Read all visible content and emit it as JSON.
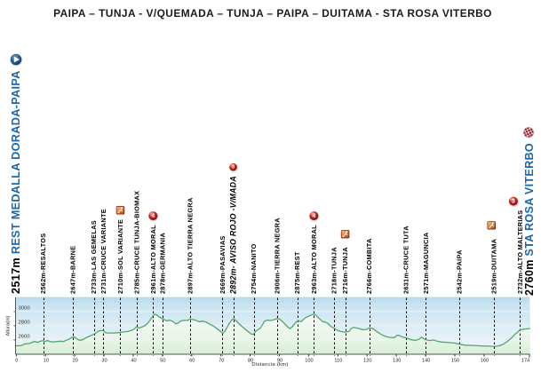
{
  "title": "PAIPA – TUNJA - V/QUEMADA – TUNJA – PAIPA – DUITAMA - STA ROSA VITERBO",
  "colors": {
    "title": "#1a1a24",
    "route_blue": "#1768af",
    "label_black": "#000000",
    "line_green": "#4fa76b",
    "axis_gray": "#555555"
  },
  "start_point": {
    "altitude": "2517m",
    "name": "REST MEDALLA DORADA-PAIPA",
    "icon": "start"
  },
  "finish_point": {
    "altitude": "2760m",
    "name": "STA ROSA VITERBO",
    "icon": "finish"
  },
  "axes": {
    "x_label": "Distancia  (km)",
    "y_label": "Altura(m)",
    "x_ticks": [
      0,
      10,
      20,
      30,
      40,
      50,
      60,
      70,
      80,
      90,
      100,
      110,
      120,
      130,
      140,
      150,
      160,
      174
    ],
    "y_ticks": [
      2600,
      2800,
      3000
    ],
    "x_range": [
      0,
      175.6
    ],
    "y_range": [
      2400,
      3200
    ]
  },
  "chart_data": {
    "type": "area",
    "title": "PAIPA – TUNJA - V/QUEMADA – TUNJA – PAIPA – DUITAMA - STA ROSA VITERBO",
    "xlabel": "Distancia  (km)",
    "ylabel": "Altura(m)",
    "xlim": [
      0,
      175.6
    ],
    "ylim": [
      2400,
      3200
    ],
    "grid": "horizontal",
    "series_name": "elevation profile",
    "points": [
      [
        0,
        2517
      ],
      [
        1.5,
        2520
      ],
      [
        3,
        2544
      ],
      [
        4.5,
        2550
      ],
      [
        6.3,
        2580
      ],
      [
        7.3,
        2566
      ],
      [
        8.5,
        2586
      ],
      [
        9.2,
        2590
      ],
      [
        9.8,
        2578
      ],
      [
        10.7,
        2592
      ],
      [
        11.5,
        2578
      ],
      [
        12.5,
        2572
      ],
      [
        13.8,
        2576
      ],
      [
        15,
        2583
      ],
      [
        16.2,
        2578
      ],
      [
        17,
        2596
      ],
      [
        17.8,
        2605
      ],
      [
        18.9,
        2633
      ],
      [
        19.6,
        2649
      ],
      [
        20.4,
        2628
      ],
      [
        21.2,
        2601
      ],
      [
        21.9,
        2596
      ],
      [
        22.7,
        2602
      ],
      [
        24.1,
        2636
      ],
      [
        25.6,
        2663
      ],
      [
        27.1,
        2694
      ],
      [
        27.9,
        2719
      ],
      [
        28.7,
        2731
      ],
      [
        29.8,
        2731
      ],
      [
        30.6,
        2700
      ],
      [
        32,
        2698
      ],
      [
        33.5,
        2697
      ],
      [
        35,
        2703
      ],
      [
        35.6,
        2706
      ],
      [
        37,
        2712
      ],
      [
        38.5,
        2722
      ],
      [
        40,
        2744
      ],
      [
        41.2,
        2785
      ],
      [
        42,
        2768
      ],
      [
        42.8,
        2780
      ],
      [
        44,
        2800
      ],
      [
        45,
        2838
      ],
      [
        46,
        2890
      ],
      [
        46.8,
        2940
      ],
      [
        47.3,
        2962
      ],
      [
        47.9,
        2955
      ],
      [
        48.6,
        2930
      ],
      [
        50,
        2899
      ],
      [
        50.7,
        2884
      ],
      [
        51.5,
        2868
      ],
      [
        52.3,
        2879
      ],
      [
        53.2,
        2867
      ],
      [
        54,
        2848
      ],
      [
        54.6,
        2828
      ],
      [
        55.4,
        2838
      ],
      [
        56.2,
        2866
      ],
      [
        57.6,
        2879
      ],
      [
        58.8,
        2876
      ],
      [
        59.4,
        2897
      ],
      [
        60.5,
        2886
      ],
      [
        61.3,
        2879
      ],
      [
        62.5,
        2858
      ],
      [
        63.9,
        2864
      ],
      [
        64.8,
        2854
      ],
      [
        65.6,
        2834
      ],
      [
        67,
        2806
      ],
      [
        68.5,
        2765
      ],
      [
        70,
        2714
      ],
      [
        70.6,
        2690
      ],
      [
        71.4,
        2725
      ],
      [
        72.8,
        2828
      ],
      [
        73.7,
        2880
      ],
      [
        74.3,
        2900
      ],
      [
        75.2,
        2868
      ],
      [
        76.7,
        2806
      ],
      [
        78.2,
        2755
      ],
      [
        79.7,
        2704
      ],
      [
        80.4,
        2684
      ],
      [
        81.1,
        2676
      ],
      [
        81.9,
        2722
      ],
      [
        82.7,
        2744
      ],
      [
        83.4,
        2764
      ],
      [
        84.3,
        2820
      ],
      [
        84.9,
        2862
      ],
      [
        85.9,
        2880
      ],
      [
        86.9,
        2872
      ],
      [
        88,
        2884
      ],
      [
        89.3,
        2902
      ],
      [
        90.1,
        2893
      ],
      [
        91.3,
        2848
      ],
      [
        92.8,
        2786
      ],
      [
        93.6,
        2759
      ],
      [
        94.4,
        2786
      ],
      [
        95.8,
        2858
      ],
      [
        96.5,
        2870
      ],
      [
        97.4,
        2858
      ],
      [
        98.8,
        2909
      ],
      [
        100.3,
        2940
      ],
      [
        101.4,
        2958
      ],
      [
        101.9,
        2964
      ],
      [
        102.6,
        2944
      ],
      [
        103.4,
        2909
      ],
      [
        104.8,
        2858
      ],
      [
        105.6,
        2851
      ],
      [
        106.4,
        2838
      ],
      [
        107.8,
        2786
      ],
      [
        108.8,
        2764
      ],
      [
        109.4,
        2744
      ],
      [
        110.9,
        2719
      ],
      [
        112.4,
        2710
      ],
      [
        113.8,
        2719
      ],
      [
        114.6,
        2764
      ],
      [
        115.4,
        2776
      ],
      [
        116.9,
        2764
      ],
      [
        118.3,
        2745
      ],
      [
        119.8,
        2748
      ],
      [
        120.7,
        2769
      ],
      [
        121.8,
        2764
      ],
      [
        122.5,
        2745
      ],
      [
        123.3,
        2719
      ],
      [
        124.8,
        2678
      ],
      [
        126.3,
        2649
      ],
      [
        127.8,
        2636
      ],
      [
        129.3,
        2633
      ],
      [
        130.1,
        2662
      ],
      [
        130.8,
        2668
      ],
      [
        131.6,
        2649
      ],
      [
        133.3,
        2629
      ],
      [
        135.2,
        2601
      ],
      [
        136.7,
        2595
      ],
      [
        137.8,
        2612
      ],
      [
        138.6,
        2640
      ],
      [
        139.5,
        2611
      ],
      [
        140.2,
        2601
      ],
      [
        141.2,
        2591
      ],
      [
        142.6,
        2600
      ],
      [
        144.1,
        2581
      ],
      [
        145.6,
        2570
      ],
      [
        147.1,
        2566
      ],
      [
        148.6,
        2561
      ],
      [
        150.1,
        2555
      ],
      [
        151.5,
        2541
      ],
      [
        153.5,
        2526
      ],
      [
        156.4,
        2522
      ],
      [
        159.2,
        2516
      ],
      [
        162,
        2512
      ],
      [
        163.3,
        2506
      ],
      [
        165,
        2516
      ],
      [
        166.4,
        2536
      ],
      [
        167.9,
        2576
      ],
      [
        169.3,
        2625
      ],
      [
        170.7,
        2684
      ],
      [
        171.8,
        2724
      ],
      [
        172.4,
        2744
      ],
      [
        173.2,
        2749
      ],
      [
        174,
        2754
      ],
      [
        175.6,
        2760
      ]
    ],
    "waypoints": [
      {
        "km": 9.2,
        "label": "2562m-RESALTOS"
      },
      {
        "km": 19.4,
        "label": "2647m-BARNE"
      },
      {
        "km": 26.5,
        "label": "2733m-LAS GEMELAS"
      },
      {
        "km": 29.8,
        "label": "2731m-CRUCE VARIANTE"
      },
      {
        "km": 35.6,
        "label": "2710m-SOL VARIANTE",
        "icon": "sprint"
      },
      {
        "km": 41.2,
        "label": "2785m-CRUCE TUNJA-BIOMAX"
      },
      {
        "km": 46.8,
        "label": "2961m-ALTO MORAL",
        "icon": "climb",
        "icon_text": "4"
      },
      {
        "km": 50.0,
        "label": "2878m-GERMANIA"
      },
      {
        "km": 59.4,
        "label": "2897m-ALTO TIERRA  NEGRA"
      },
      {
        "km": 70.5,
        "label": "2669m-PASAVIAS"
      },
      {
        "km": 74.2,
        "label": "2892m- AVISO ROJO -V/MADA",
        "icon": "climb",
        "icon_text": "3",
        "emphasis": true
      },
      {
        "km": 81.2,
        "label": "2754m-NANITO"
      },
      {
        "km": 89.2,
        "label": "2906m-TIERRA  NEGRA"
      },
      {
        "km": 96.1,
        "label": "2875m-REST"
      },
      {
        "km": 101.8,
        "label": "2963m-ALTO MORAL",
        "icon": "climb",
        "icon_text": "4"
      },
      {
        "km": 108.7,
        "label": "2718m-TUNJA"
      },
      {
        "km": 112.5,
        "label": "2716m-TUNJA",
        "icon": "sprint",
        "icon_gap": 14.5
      },
      {
        "km": 120.7,
        "label": "2766m-COMBITA"
      },
      {
        "km": 133.3,
        "label": "2631m-CRUCE TUTA"
      },
      {
        "km": 140.1,
        "label": "2571m-MAGUNCIA"
      },
      {
        "km": 151.5,
        "label": "2542m-PAIPA"
      },
      {
        "km": 163.3,
        "label": "2519m-DUITAMA",
        "icon": "sprint",
        "icon_gap": 15,
        "icon_dx": -2.5
      },
      {
        "km": 172.3,
        "label": "2732m-ALTO MALTERIAS",
        "icon": "climb",
        "icon_text": "3",
        "icon_dx": -7.5
      }
    ]
  }
}
